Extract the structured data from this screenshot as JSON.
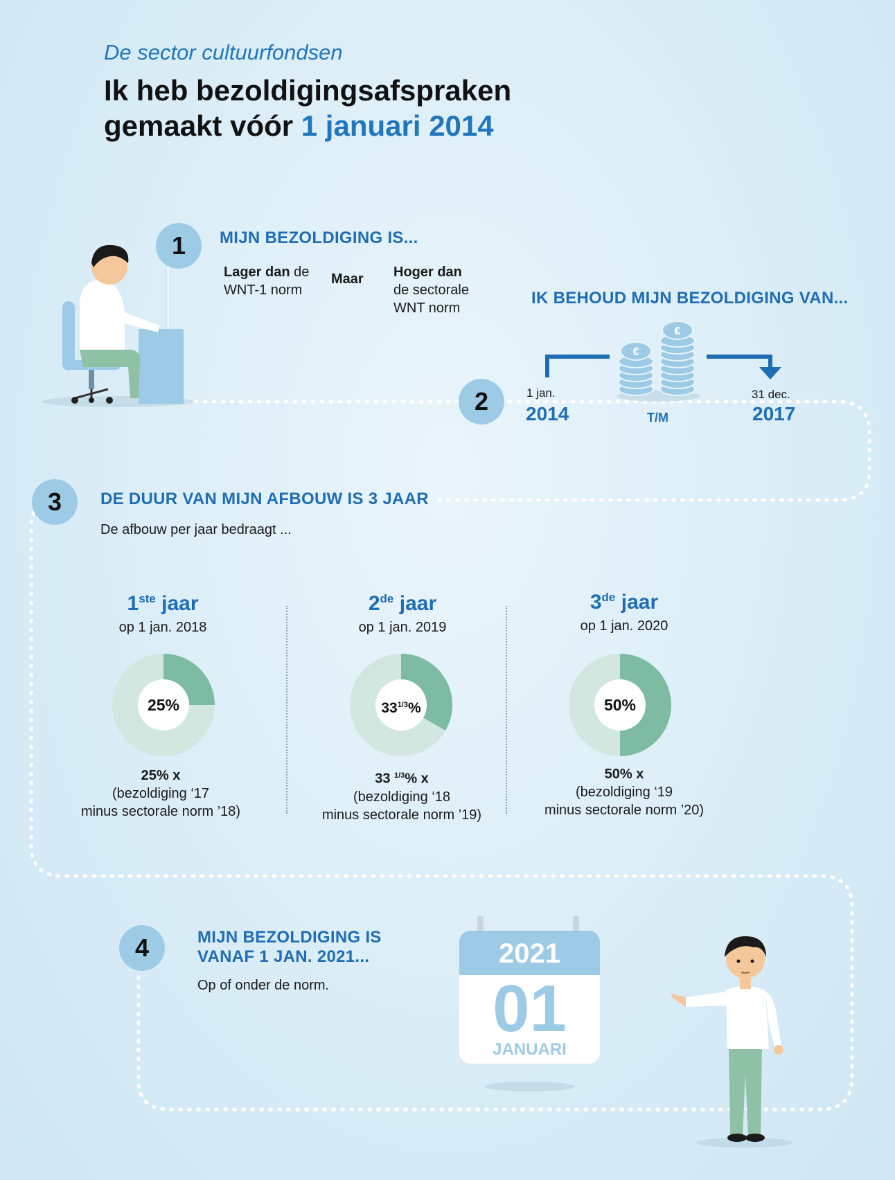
{
  "header": {
    "subtitle": "De sector cultuurfondsen",
    "title_line1": "Ik heb bezoldigingsafspraken",
    "title_line2_prefix": "gemaakt vóór",
    "title_line2_highlight": "1 januari 2014"
  },
  "step1": {
    "number": "1",
    "heading": "MIJN BEZOLDIGING IS...",
    "left_bold": "Lager dan",
    "left_rest1": " de",
    "left_rest2": "WNT-1 norm",
    "middle": "Maar",
    "right_bold": "Hoger dan",
    "right_rest1": "de sectorale",
    "right_rest2": "WNT norm"
  },
  "step2": {
    "number": "2",
    "heading": "IK BEHOUD MIJN BEZOLDIGING VAN...",
    "start_label": "1 jan.",
    "start_year": "2014",
    "middle": "T/M",
    "end_label": "31 dec.",
    "end_year": "2017",
    "coin_symbol": "€"
  },
  "step3": {
    "number": "3",
    "heading": "DE DUUR VAN MIJN AFBOUW IS 3 JAAR",
    "intro": "De afbouw per jaar bedraagt ...",
    "years": [
      {
        "num": "1",
        "sup": "ste",
        "word": "jaar",
        "date": "op 1 jan. 2018",
        "label": "25%",
        "fraction": 0.25,
        "formula1": "25% x",
        "formula2": "(bezoldiging ‘17",
        "formula3": "minus sectorale norm ’18)"
      },
      {
        "num": "2",
        "sup": "de",
        "word": "jaar",
        "date": "op 1 jan. 2019",
        "label_main": "33",
        "label_sup": "1/3",
        "label_end": "%",
        "fraction": 0.3333,
        "formula1_main": "33",
        "formula1_sup": "1/3",
        "formula1_end": "% x",
        "formula2": "(bezoldiging ‘18",
        "formula3": "minus sectorale norm ’19)"
      },
      {
        "num": "3",
        "sup": "de",
        "word": "jaar",
        "date": "op 1 jan. 2020",
        "label": "50%",
        "fraction": 0.5,
        "formula1": "50% x",
        "formula2": "(bezoldiging ‘19",
        "formula3": "minus sectorale norm ’20)"
      }
    ]
  },
  "step4": {
    "number": "4",
    "heading_line1": "MIJN BEZOLDIGING IS",
    "heading_line2": "VANAF 1 JAN. 2021...",
    "text": "Op of onder de norm.",
    "calendar_year": "2021",
    "calendar_day": "01",
    "calendar_month": "JANUARI"
  },
  "colors": {
    "accent": "#1f6db5",
    "circle": "#9dcbe6",
    "donut_dark": "#7dbba2",
    "donut_light": "#d2e7df"
  }
}
